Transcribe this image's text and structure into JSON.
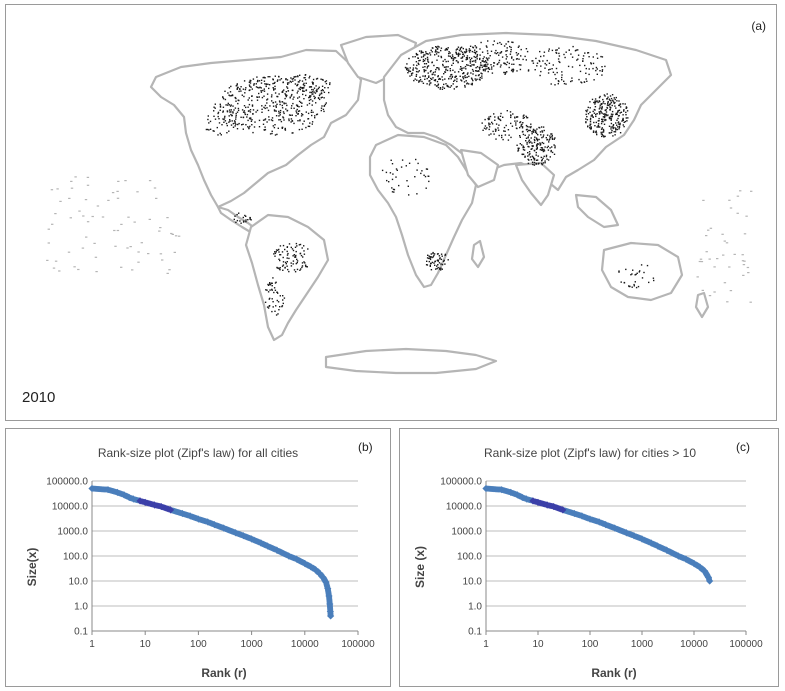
{
  "map": {
    "panel_label": "(a)",
    "year": "2010",
    "point_color": "#1a1a1a",
    "land_color": "#ffffff",
    "border_color": "#b5b5b5"
  },
  "chart_data": [
    {
      "type": "scatter",
      "panel_label": "(b)",
      "title": "Rank-size plot (Zipf's law) for all cities",
      "xlabel": "Rank (r)",
      "ylabel": "Size(x)",
      "x_scale": "log",
      "y_scale": "log",
      "xlim": [
        1,
        100000
      ],
      "ylim": [
        0.1,
        100000
      ],
      "x_ticks": [
        1,
        10,
        100,
        1000,
        10000,
        100000
      ],
      "x_tick_labels": [
        "1",
        "10",
        "100",
        "1000",
        "10000",
        "100000"
      ],
      "y_ticks": [
        0.1,
        1,
        10,
        100,
        1000,
        10000,
        100000
      ],
      "y_tick_labels": [
        "0.1",
        "1.0",
        "10.0",
        "100.0",
        "1000.0",
        "10000.0",
        "100000.0"
      ],
      "grid": "horizontal",
      "point_color": "#4a7ebb",
      "dense_color": "#3b3fa8",
      "series": [
        {
          "x": [
            1,
            2,
            3,
            4,
            5,
            6,
            8,
            10,
            15,
            20,
            30,
            50,
            70,
            100,
            150,
            200,
            300,
            500,
            700,
            1000,
            1500,
            2000,
            3000,
            5000,
            7000,
            10000,
            13000,
            16000,
            19000,
            22000,
            25000,
            27000,
            28500,
            29500,
            30200,
            30600
          ],
          "y": [
            50000,
            45000,
            35000,
            28000,
            22000,
            19000,
            16000,
            14000,
            11000,
            9500,
            7000,
            5000,
            4000,
            3000,
            2300,
            1800,
            1300,
            850,
            650,
            480,
            330,
            250,
            170,
            100,
            75,
            50,
            37,
            28,
            20,
            14,
            9,
            5,
            2.5,
            1.2,
            0.6,
            0.4
          ]
        }
      ]
    },
    {
      "type": "scatter",
      "panel_label": "(c)",
      "title": "Rank-size plot (Zipf's law) for cities > 10",
      "xlabel": "Rank (r)",
      "ylabel": "Size (x)",
      "x_scale": "log",
      "y_scale": "log",
      "xlim": [
        1,
        100000
      ],
      "ylim": [
        0.1,
        100000
      ],
      "x_ticks": [
        1,
        10,
        100,
        1000,
        10000,
        100000
      ],
      "x_tick_labels": [
        "1",
        "10",
        "100",
        "1000",
        "10000",
        "100000"
      ],
      "y_ticks": [
        0.1,
        1,
        10,
        100,
        1000,
        10000,
        100000
      ],
      "y_tick_labels": [
        "0.1",
        "1.0",
        "10.0",
        "100.0",
        "1000.0",
        "10000.0",
        "100000.0"
      ],
      "grid": "horizontal",
      "point_color": "#4a7ebb",
      "dense_color": "#3b3fa8",
      "series": [
        {
          "x": [
            1,
            2,
            3,
            4,
            5,
            6,
            8,
            10,
            15,
            20,
            30,
            50,
            70,
            100,
            150,
            200,
            300,
            500,
            700,
            1000,
            1500,
            2000,
            3000,
            5000,
            7000,
            10000,
            13000,
            16000,
            19000,
            20000
          ],
          "y": [
            50000,
            45000,
            35000,
            28000,
            22000,
            19000,
            16000,
            14000,
            11000,
            9500,
            7000,
            5000,
            4000,
            3000,
            2300,
            1800,
            1300,
            850,
            650,
            480,
            330,
            250,
            170,
            100,
            75,
            50,
            36,
            25,
            14,
            10
          ]
        }
      ]
    }
  ]
}
